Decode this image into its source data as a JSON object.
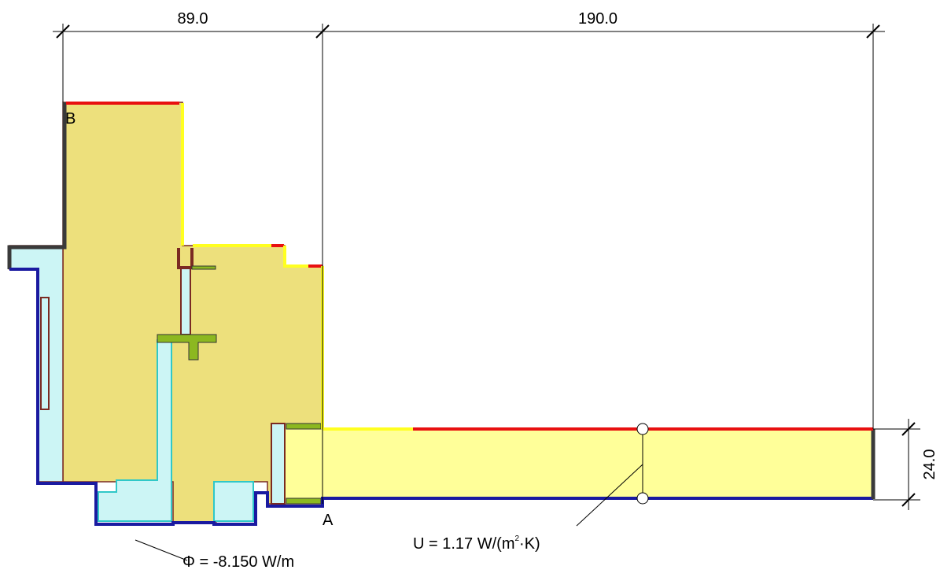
{
  "dimensions": {
    "width_left": "89.0",
    "width_right": "190.0",
    "thickness": "24.0"
  },
  "points": {
    "a": "A",
    "b": "B"
  },
  "u_value": {
    "prefix": "U = 1.17 W/(m",
    "sup": "2",
    "suffix": "·K)"
  },
  "heat_flow": "Φ = -8.150 W/m"
}
